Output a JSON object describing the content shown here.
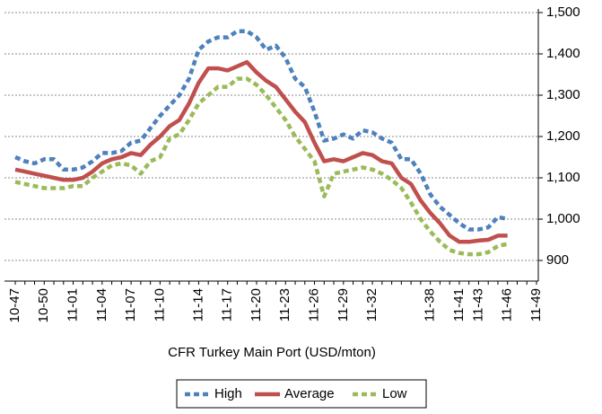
{
  "chart_data": {
    "type": "line",
    "x_label": "CFR Turkey Main Port (USD/mton)",
    "categories": [
      "10-47",
      null,
      null,
      "10-50",
      null,
      null,
      "11-01",
      null,
      null,
      "11-04",
      null,
      null,
      "11-07",
      null,
      null,
      "11-10",
      null,
      null,
      null,
      "11-14",
      null,
      null,
      "11-17",
      null,
      null,
      "11-20",
      null,
      null,
      "11-23",
      null,
      null,
      "11-26",
      null,
      null,
      "11-29",
      null,
      null,
      "11-32",
      null,
      null,
      null,
      null,
      null,
      "11-38",
      null,
      null,
      "11-41",
      null,
      "11-43",
      null,
      null,
      "11-46",
      null,
      null,
      "11-49"
    ],
    "series": [
      {
        "name": "High",
        "color": "#4f81bd",
        "values": [
          1150,
          1140,
          1135,
          1145,
          1145,
          1120,
          1120,
          1125,
          1140,
          1160,
          1160,
          1165,
          1185,
          1190,
          1220,
          1250,
          1275,
          1300,
          1340,
          1410,
          1430,
          1440,
          1440,
          1455,
          1455,
          1440,
          1410,
          1420,
          1390,
          1340,
          1320,
          1260,
          1190,
          1195,
          1205,
          1195,
          1215,
          1210,
          1195,
          1185,
          1145,
          1145,
          1110,
          1060,
          1030,
          1010,
          990,
          975,
          975,
          980,
          1005,
          1000,
          null,
          null,
          null
        ]
      },
      {
        "name": "Average",
        "color": "#c0504d",
        "values": [
          1120,
          1115,
          1110,
          1105,
          1100,
          1095,
          1095,
          1100,
          1115,
          1135,
          1145,
          1150,
          1160,
          1155,
          1180,
          1200,
          1225,
          1240,
          1280,
          1330,
          1365,
          1365,
          1360,
          1370,
          1380,
          1355,
          1335,
          1320,
          1290,
          1260,
          1235,
          1185,
          1140,
          1145,
          1140,
          1150,
          1160,
          1155,
          1140,
          1135,
          1100,
          1085,
          1045,
          1015,
          990,
          960,
          945,
          945,
          948,
          950,
          960,
          960,
          null,
          null,
          null
        ]
      },
      {
        "name": "Low",
        "color": "#9bbb59",
        "values": [
          1090,
          1085,
          1080,
          1075,
          1075,
          1075,
          1080,
          1080,
          1100,
          1115,
          1130,
          1135,
          1130,
          1110,
          1140,
          1150,
          1195,
          1205,
          1240,
          1280,
          1300,
          1320,
          1320,
          1340,
          1340,
          1325,
          1300,
          1270,
          1240,
          1200,
          1170,
          1140,
          1055,
          1110,
          1115,
          1120,
          1125,
          1120,
          1110,
          1095,
          1075,
          1040,
          1000,
          970,
          945,
          925,
          918,
          915,
          915,
          920,
          935,
          940,
          null,
          null,
          null
        ]
      }
    ],
    "ylim": [
      850,
      1500
    ],
    "yticks": [
      900,
      {
        "value": 1000,
        "label": "1,000"
      },
      {
        "value": 1100,
        "label": "1,100"
      },
      {
        "value": 1200,
        "label": "1,200"
      },
      {
        "value": 1300,
        "label": "1,300"
      },
      {
        "value": 1400,
        "label": "1,400"
      },
      {
        "value": 1500,
        "label": "1,500"
      }
    ],
    "grid": true,
    "legend": "bottom"
  }
}
